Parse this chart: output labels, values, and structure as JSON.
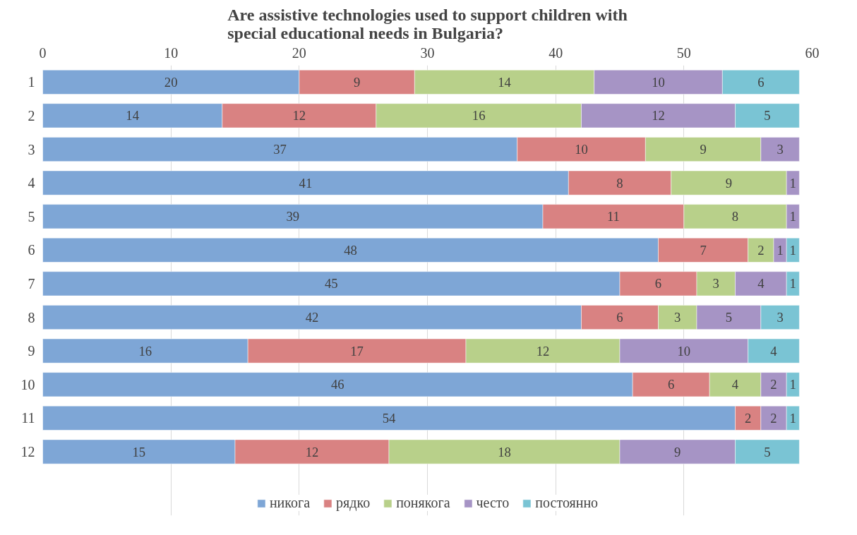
{
  "chart_data": {
    "type": "bar",
    "orientation": "horizontal",
    "stacked": true,
    "title": "Are assistive technologies used to support children with special educational needs in Bulgaria?",
    "categories": [
      "1",
      "2",
      "3",
      "4",
      "5",
      "6",
      "7",
      "8",
      "9",
      "10",
      "11",
      "12"
    ],
    "series": [
      {
        "name": "никога",
        "color": "#7ea6d6",
        "values": [
          20,
          14,
          37,
          41,
          39,
          48,
          45,
          42,
          16,
          46,
          54,
          15
        ]
      },
      {
        "name": "рядко",
        "color": "#d98282",
        "values": [
          9,
          12,
          10,
          8,
          11,
          7,
          6,
          6,
          17,
          6,
          2,
          12
        ]
      },
      {
        "name": "понякога",
        "color": "#b8d08a",
        "values": [
          14,
          16,
          9,
          9,
          8,
          2,
          3,
          3,
          12,
          4,
          null,
          18
        ]
      },
      {
        "name": "често",
        "color": "#a694c5",
        "values": [
          10,
          12,
          3,
          1,
          1,
          1,
          4,
          5,
          10,
          2,
          2,
          9
        ]
      },
      {
        "name": "постоянно",
        "color": "#7ac4d4",
        "values": [
          6,
          5,
          null,
          null,
          null,
          1,
          1,
          3,
          4,
          1,
          1,
          5
        ]
      }
    ],
    "xlim": [
      0,
      60
    ],
    "xticks": [
      0,
      10,
      20,
      30,
      40,
      50,
      60
    ],
    "grid": "x",
    "legend": "bottom",
    "data_labels": true
  }
}
